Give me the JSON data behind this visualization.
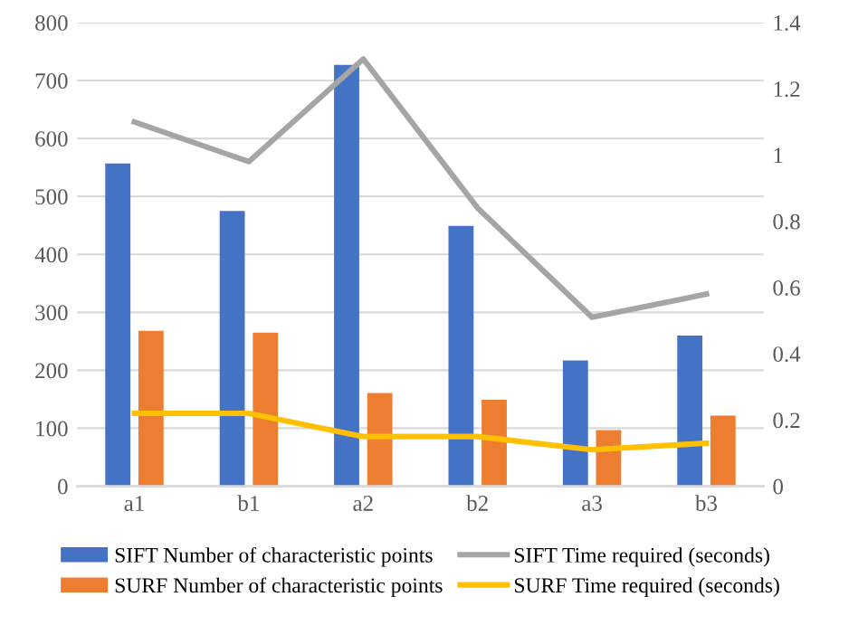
{
  "chart_data": {
    "type": "bar",
    "categories": [
      "a1",
      "b1",
      "a2",
      "b2",
      "a3",
      "b3"
    ],
    "series": [
      {
        "name": "SIFT Number of characteristic points",
        "color": "#4472c4",
        "values": [
          557,
          475,
          727,
          449,
          217,
          260
        ]
      },
      {
        "name": "SURF Number of characteristic points",
        "color": "#ed7d31",
        "values": [
          268,
          265,
          161,
          149,
          97,
          122
        ]
      },
      {
        "name": "SIFT Time required (seconds)",
        "type": "line",
        "axis": "y2",
        "color": "#a5a5a5",
        "values": [
          1.1,
          0.98,
          1.29,
          0.84,
          0.51,
          0.58
        ]
      },
      {
        "name": "SURF Time required (seconds)",
        "type": "line",
        "axis": "y2",
        "color": "#ffc000",
        "values": [
          0.22,
          0.22,
          0.15,
          0.15,
          0.11,
          0.13
        ]
      }
    ],
    "ylim": [
      0,
      800
    ],
    "yticks": [
      0,
      100,
      200,
      300,
      400,
      500,
      600,
      700,
      800
    ],
    "y2lim": [
      0,
      1.4
    ],
    "y2ticks": [
      0,
      0.2,
      0.4,
      0.6,
      0.8,
      1,
      1.2,
      1.4
    ],
    "grid": "y",
    "legend": "bottom",
    "marker": "none",
    "line_style": "solid"
  }
}
